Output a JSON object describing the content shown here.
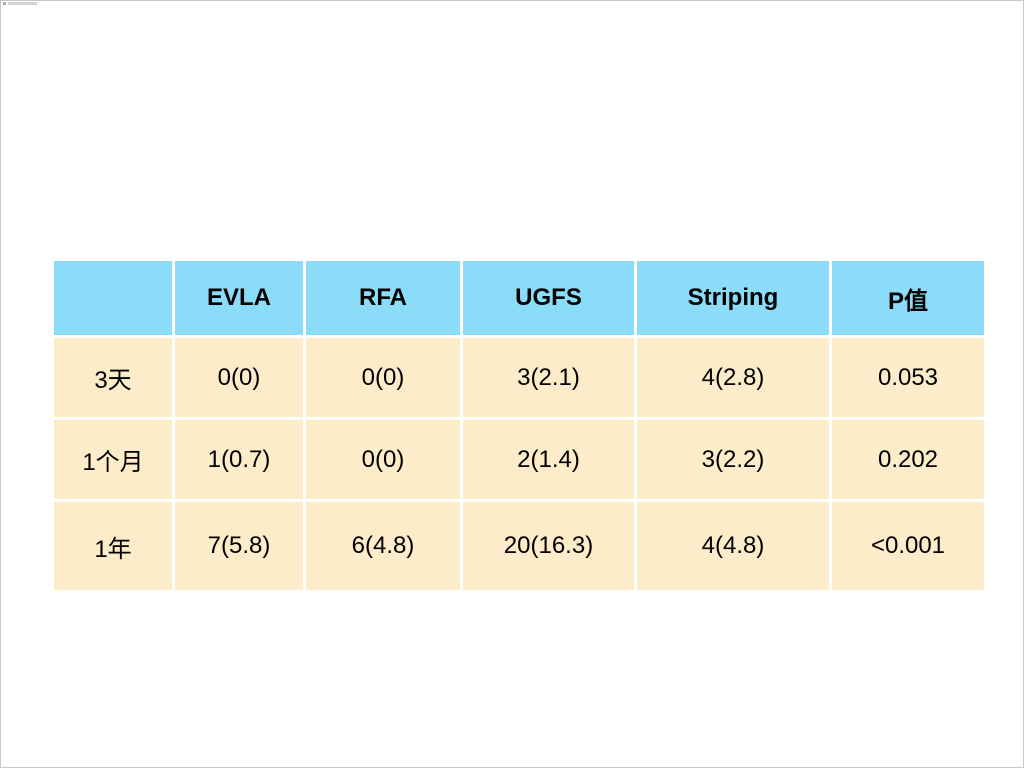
{
  "table": {
    "headers": [
      "",
      "EVLA",
      "RFA",
      "UGFS",
      "Striping",
      "P值"
    ],
    "rows": [
      {
        "label": "3天",
        "cells": [
          "0(0)",
          "0(0)",
          "3(2.1)",
          "4(2.8)",
          "0.053"
        ]
      },
      {
        "label": "1个月",
        "cells": [
          "1(0.7)",
          "0(0)",
          "2(1.4)",
          "3(2.2)",
          "0.202"
        ]
      },
      {
        "label": "1年",
        "cells": [
          "7(5.8)",
          "6(4.8)",
          "20(16.3)",
          "4(4.8)",
          "<0.001"
        ]
      }
    ]
  },
  "colors": {
    "header_bg": "#8bdcf8",
    "body_bg": "#fdecca"
  }
}
